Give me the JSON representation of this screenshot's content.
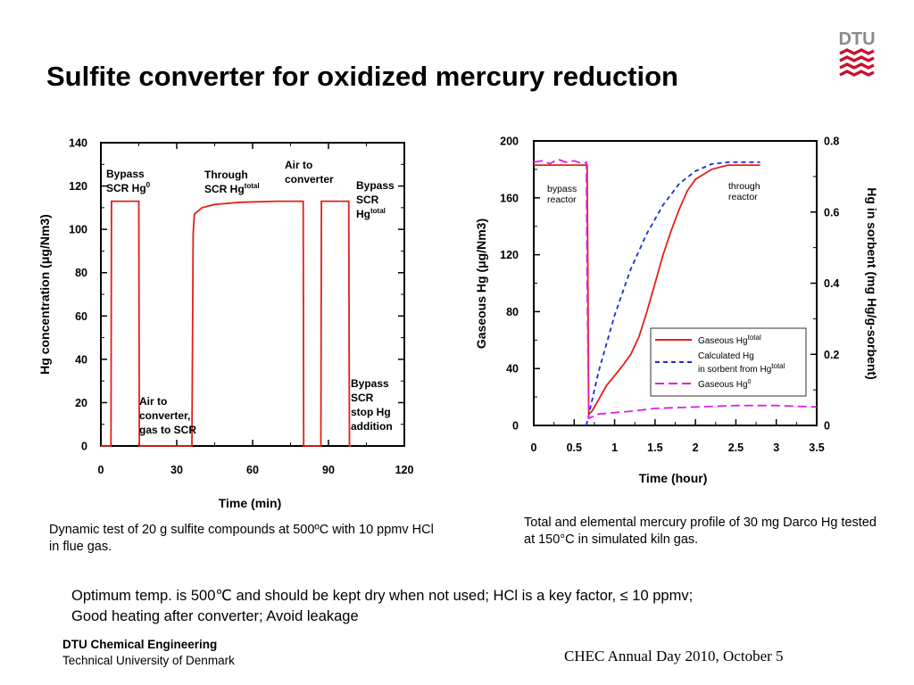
{
  "title": "Sulfite converter for oxidized mercury reduction",
  "logo": {
    "text": "DTU"
  },
  "colors": {
    "red": "#e0201b",
    "blue": "#1a2fd0",
    "magenta": "#e020e0",
    "logo_red": "#c8102e"
  },
  "caption_left": "Dynamic test of 20 g sulfite compounds at 500ºC with 10 ppmv HCl in flue gas.",
  "caption_right": "Total and elemental mercury profile of 30 mg Darco Hg tested at 150°C  in simulated kiln gas.",
  "conclusion": {
    "line1": "Optimum temp. is 500℃ and should be kept dry when not used; HCl is a key factor, ≤ 10 ppmv;",
    "line2": "Good heating after converter; Avoid leakage"
  },
  "footer": {
    "dept": "DTU Chemical Engineering",
    "univ": "Technical University of Denmark",
    "event": "CHEC Annual Day 2010, October 5"
  },
  "chart_data": [
    {
      "type": "line",
      "title": "",
      "xlabel": "Time (min)",
      "ylabel": "Hg concentration (μg/Nm3)",
      "xlim": [
        0,
        120
      ],
      "ylim": [
        0,
        140
      ],
      "x_ticks": [
        "0",
        "30",
        "60",
        "90",
        "120"
      ],
      "y_ticks": [
        "0",
        "20",
        "40",
        "60",
        "80",
        "100",
        "120",
        "140"
      ],
      "grid": false,
      "series": [
        {
          "color": "#e0201b",
          "x": [
            0,
            4,
            4.2,
            15,
            15.2,
            36,
            36.5,
            37,
            40,
            45,
            55,
            70,
            80,
            80.2,
            82,
            87,
            87.2,
            98,
            98.3,
            99
          ],
          "y": [
            0,
            0,
            113,
            113,
            0,
            0,
            98,
            107,
            110,
            111.5,
            112.5,
            113,
            113,
            0,
            0,
            0,
            113,
            113,
            0,
            0
          ]
        }
      ],
      "annotations": [
        {
          "id": "bypass-hg0",
          "line1": "Bypass",
          "line2": "SCR Hg",
          "sup": "0"
        },
        {
          "id": "through-total",
          "line1": "Through",
          "line2": "SCR Hg",
          "sup": "total"
        },
        {
          "id": "air-converter",
          "line1": "Air to",
          "line2": "converter"
        },
        {
          "id": "bypass-total",
          "line1": "Bypass",
          "line2": "SCR",
          "line3": "Hg",
          "sup": "total"
        },
        {
          "id": "air-converter-scr",
          "line1": "Air to",
          "line2": "converter,",
          "line3": "gas to SCR"
        },
        {
          "id": "bypass-stop",
          "line1": "Bypass",
          "line2": "SCR",
          "line3": "stop Hg",
          "line4": "addition"
        }
      ]
    },
    {
      "type": "line",
      "title": "",
      "xlabel": "Time (hour)",
      "ylabel": "Gaseous Hg (μg/Nm3)",
      "y2label": "Hg in sorbent (mg Hg/g-sorbent)",
      "xlim": [
        0,
        3.5
      ],
      "ylim": [
        0,
        200
      ],
      "y2lim": [
        0,
        0.8
      ],
      "x_ticks": [
        "0",
        "0.5",
        "1",
        "1.5",
        "2",
        "2.5",
        "3",
        "3.5"
      ],
      "y_ticks": [
        "0",
        "40",
        "80",
        "120",
        "160",
        "200"
      ],
      "y2_ticks": [
        "0",
        "0.2",
        "0.4",
        "0.6",
        "0.8"
      ],
      "grid": false,
      "legend": "lower-right inside",
      "series": [
        {
          "name": "Gaseous Hg",
          "name_sup": "total",
          "color": "#e0201b",
          "style": "solid",
          "x": [
            0,
            0.65,
            0.66,
            0.68,
            0.72,
            0.8,
            0.9,
            1.0,
            1.1,
            1.2,
            1.3,
            1.4,
            1.5,
            1.6,
            1.7,
            1.8,
            1.9,
            2.0,
            2.2,
            2.4,
            2.6,
            2.8
          ],
          "y": [
            183,
            183,
            183,
            8,
            10,
            18,
            28,
            35,
            42,
            50,
            62,
            80,
            100,
            120,
            137,
            152,
            165,
            173,
            180,
            183,
            183,
            183
          ]
        },
        {
          "name": "Calculated Hg in sorbent from Hg",
          "name_sup": "total",
          "color": "#1a2fd0",
          "style": "dashed",
          "x": [
            0.65,
            0.8,
            1.0,
            1.2,
            1.4,
            1.6,
            1.8,
            2.0,
            2.2,
            2.4,
            2.6,
            2.8
          ],
          "y": [
            0,
            0.15,
            0.31,
            0.44,
            0.54,
            0.62,
            0.68,
            0.715,
            0.735,
            0.74,
            0.74,
            0.74
          ]
        },
        {
          "name": "Gaseous Hg",
          "name_sup": "0",
          "color": "#e020e0",
          "style": "dashed",
          "x": [
            0,
            0.1,
            0.2,
            0.3,
            0.4,
            0.5,
            0.6,
            0.65,
            0.66,
            0.68,
            0.8,
            1.0,
            1.2,
            1.5,
            2.0,
            2.5,
            3.0,
            3.5
          ],
          "y": [
            185,
            186,
            184,
            187,
            185,
            186,
            184,
            185,
            100,
            5,
            8,
            9,
            10,
            12,
            13,
            14,
            14,
            13
          ]
        }
      ],
      "annotations": [
        {
          "id": "bypass-reactor",
          "line1": "bypass",
          "line2": "reactor"
        },
        {
          "id": "through-reactor",
          "line1": "through",
          "line2": "reactor"
        }
      ]
    }
  ]
}
